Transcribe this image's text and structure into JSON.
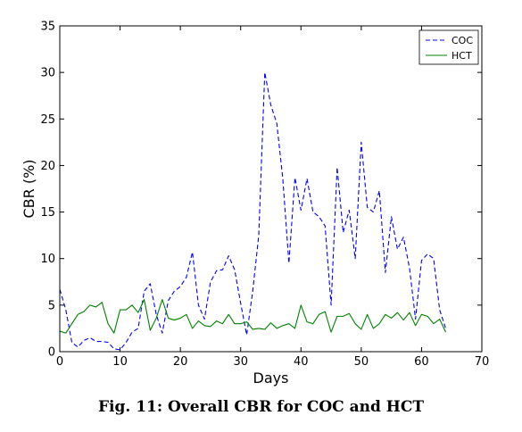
{
  "caption": "Fig. 11: Overall CBR for COC and HCT",
  "chart_data": {
    "type": "line",
    "title": "",
    "xlabel": "Days",
    "ylabel": "CBR (%)",
    "xlim": [
      0,
      70
    ],
    "ylim": [
      0,
      35
    ],
    "xticks": [
      0,
      10,
      20,
      30,
      40,
      50,
      60,
      70
    ],
    "yticks": [
      0,
      5,
      10,
      15,
      20,
      25,
      30,
      35
    ],
    "grid": false,
    "legend_position": "top-right",
    "series": [
      {
        "name": "COC",
        "color": "#0000ff",
        "style": "dashed",
        "x": [
          0,
          1,
          2,
          3,
          4,
          5,
          6,
          7,
          8,
          9,
          10,
          11,
          12,
          13,
          14,
          15,
          16,
          17,
          18,
          19,
          20,
          21,
          22,
          23,
          24,
          25,
          26,
          27,
          28,
          29,
          30,
          31,
          32,
          33,
          34,
          35,
          36,
          37,
          38,
          39,
          40,
          41,
          42,
          43,
          44,
          45,
          46,
          47,
          48,
          49,
          50,
          51,
          52,
          53,
          54,
          55,
          56,
          57,
          58,
          59,
          60,
          61,
          62,
          63,
          64
        ],
        "y": [
          6.7,
          4.5,
          1.0,
          0.5,
          1.2,
          1.5,
          1.1,
          1.1,
          1.0,
          0.3,
          0.2,
          1.0,
          2.1,
          2.5,
          6.5,
          7.3,
          4.0,
          2.0,
          5.5,
          6.5,
          7.0,
          8.0,
          10.7,
          5.0,
          3.5,
          7.5,
          8.7,
          8.8,
          10.3,
          8.8,
          5.2,
          1.8,
          6.5,
          12.5,
          30.0,
          26.5,
          24.5,
          18.5,
          9.5,
          18.7,
          15.2,
          18.6,
          15.0,
          14.5,
          13.5,
          5.0,
          19.8,
          12.8,
          15.2,
          10.0,
          22.5,
          15.5,
          15.0,
          17.3,
          8.5,
          14.5,
          11.0,
          12.3,
          9.0,
          3.5,
          9.8,
          10.5,
          10.0,
          4.5,
          2.5
        ]
      },
      {
        "name": "HCT",
        "color": "#008000",
        "style": "solid",
        "x": [
          0,
          1,
          2,
          3,
          4,
          5,
          6,
          7,
          8,
          9,
          10,
          11,
          12,
          13,
          14,
          15,
          16,
          17,
          18,
          19,
          20,
          21,
          22,
          23,
          24,
          25,
          26,
          27,
          28,
          29,
          30,
          31,
          32,
          33,
          34,
          35,
          36,
          37,
          38,
          39,
          40,
          41,
          42,
          43,
          44,
          45,
          46,
          47,
          48,
          49,
          50,
          51,
          52,
          53,
          54,
          55,
          56,
          57,
          58,
          59,
          60,
          61,
          62,
          63,
          64
        ],
        "y": [
          2.2,
          2.0,
          3.0,
          4.0,
          4.3,
          5.0,
          4.8,
          5.3,
          3.0,
          2.0,
          4.5,
          4.5,
          5.0,
          4.2,
          5.6,
          2.3,
          3.6,
          5.6,
          3.6,
          3.4,
          3.6,
          4.0,
          2.5,
          3.3,
          2.8,
          2.7,
          3.3,
          3.0,
          4.0,
          3.0,
          3.0,
          3.2,
          2.4,
          2.5,
          2.4,
          3.1,
          2.5,
          2.8,
          3.0,
          2.5,
          5.0,
          3.2,
          3.0,
          4.0,
          4.3,
          2.1,
          3.8,
          3.8,
          4.1,
          3.0,
          2.4,
          4.0,
          2.5,
          3.0,
          4.0,
          3.6,
          4.2,
          3.4,
          4.2,
          2.8,
          4.0,
          3.8,
          3.0,
          3.5,
          2.1
        ]
      }
    ]
  }
}
